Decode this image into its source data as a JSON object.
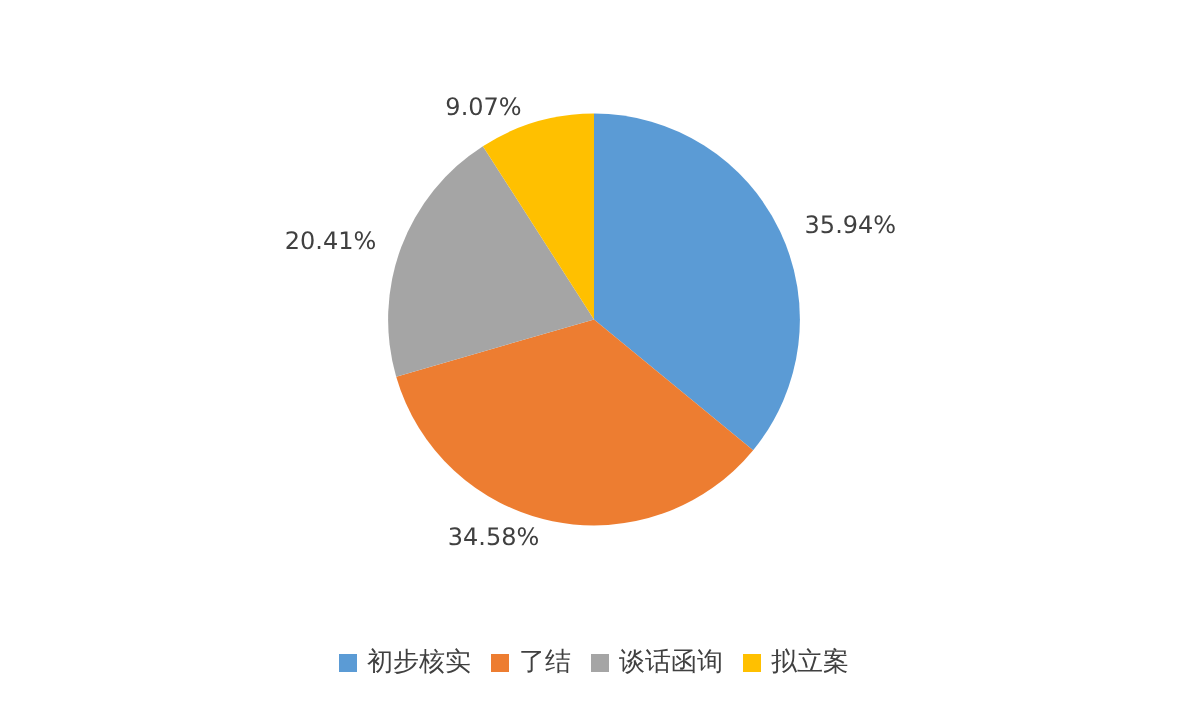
{
  "chart_data": {
    "type": "pie",
    "categories": [
      "初步核实",
      "了结",
      "谈话函询",
      "拟立案"
    ],
    "values": [
      35.94,
      34.58,
      20.41,
      9.07
    ],
    "colors": [
      "#5b9bd5",
      "#ed7d31",
      "#a5a5a5",
      "#ffc000"
    ],
    "value_labels": [
      "35.94%",
      "34.58%",
      "20.41%",
      "9.07%"
    ],
    "legend": "bottom"
  }
}
